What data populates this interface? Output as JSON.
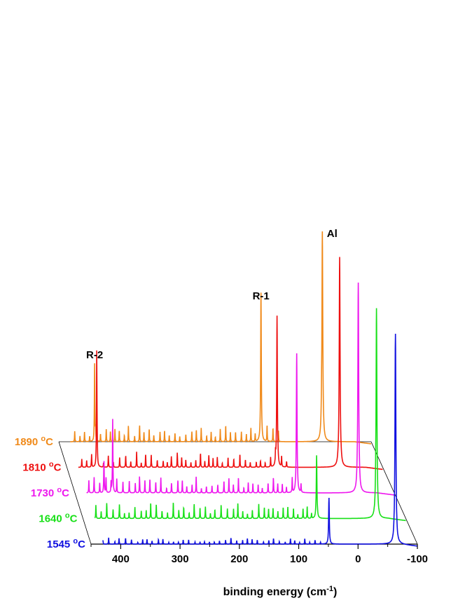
{
  "chart_data": {
    "type": "line",
    "subtype": "waterfall-3d",
    "xlabel": "binding energy (cm",
    "xlabel_sup": "-1",
    "xlabel_tail": ")",
    "x_range": [
      450,
      -100
    ],
    "x_ticks": [
      {
        "value": 400,
        "label": "400"
      },
      {
        "value": 300,
        "label": "300"
      },
      {
        "value": 200,
        "label": "200"
      },
      {
        "value": 100,
        "label": "100"
      },
      {
        "value": 0,
        "label": "0"
      },
      {
        "value": -100,
        "label": "-100"
      }
    ],
    "reversed_x": true,
    "series": [
      {
        "name": "1545 °C",
        "temp": "1545",
        "unit": "C",
        "color": "#1010e0",
        "peaks": [
          {
            "x": 49,
            "h": 0.22,
            "w": 0.7
          },
          {
            "x": -63,
            "h": 1.0,
            "w": 0.9
          }
        ],
        "baseline_tail": -0.01
      },
      {
        "name": "1640 °C",
        "temp": "1640",
        "unit": "C",
        "color": "#18e018",
        "peaks": [
          {
            "x": 52,
            "h": 0.3,
            "w": 0.7
          },
          {
            "x": -50,
            "h": 1.0,
            "w": 0.9
          }
        ],
        "baseline_tail": -0.01
      },
      {
        "name": "1730 °C",
        "temp": "1730",
        "unit": "C",
        "color": "#ee18ee",
        "peaks": [
          {
            "x": 400,
            "h": 0.15,
            "w": 0.5
          },
          {
            "x": 385,
            "h": 0.35,
            "w": 0.5
          },
          {
            "x": 68,
            "h": 0.65,
            "w": 0.7
          },
          {
            "x": -38,
            "h": 1.0,
            "w": 0.9
          }
        ],
        "baseline_tail": -0.01
      },
      {
        "name": "1810 °C",
        "temp": "1810",
        "unit": "C",
        "color": "#ee1010",
        "peaks": [
          {
            "x": 398,
            "h": 0.55,
            "w": 0.5
          },
          {
            "x": 84,
            "h": 0.72,
            "w": 0.7
          },
          {
            "x": -25,
            "h": 1.0,
            "w": 0.9
          }
        ],
        "baseline_tail": -0.01
      },
      {
        "name": "1890 °C",
        "temp": "1890",
        "unit": "C",
        "color": "#f08a1a",
        "peaks": [
          {
            "x": 387,
            "h": 0.37,
            "w": 0.5
          },
          {
            "x": 94,
            "h": 0.65,
            "w": 0.7
          },
          {
            "x": -14,
            "h": 1.0,
            "w": 0.9
          }
        ],
        "baseline_tail": -0.01
      }
    ],
    "annotations": [
      {
        "text": "Al",
        "x": -14
      },
      {
        "text": "R-1",
        "x": 94
      },
      {
        "text": "R-2",
        "x": 387
      }
    ]
  }
}
